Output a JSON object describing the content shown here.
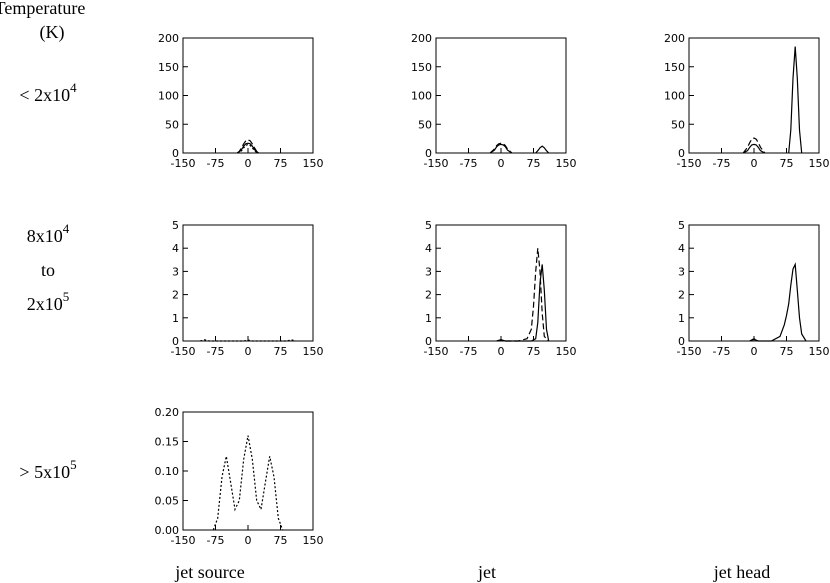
{
  "header": {
    "line1": "Temperature",
    "line2": "(K)"
  },
  "row_labels": [
    [
      {
        "text": "< 2x10",
        "sup": "4"
      }
    ],
    [
      {
        "text": "8x10",
        "sup": "4"
      },
      {
        "text": "to"
      },
      {
        "text": "2x10",
        "sup": "5"
      }
    ],
    [
      {
        "text": "> 5x10",
        "sup": "5"
      }
    ]
  ],
  "column_labels": [
    "jet source",
    "jet",
    "jet head"
  ],
  "chart_data": [
    {
      "type": "line",
      "xlim": [
        -150,
        150
      ],
      "xticks": [
        -150,
        -75,
        0,
        75,
        150
      ],
      "ylim": [
        0,
        200
      ],
      "yticks": [
        0,
        50,
        100,
        150,
        200
      ],
      "series": [
        {
          "color": "#000000",
          "style": "solid",
          "x": [
            -25,
            -20,
            -15,
            -10,
            -5,
            0,
            5,
            10,
            15,
            20,
            25
          ],
          "values": [
            0,
            2,
            6,
            12,
            16,
            17,
            16,
            12,
            6,
            2,
            0
          ]
        },
        {
          "color": "#000000",
          "style": "dashed",
          "x": [
            -25,
            -20,
            -15,
            -10,
            -5,
            0,
            5,
            10,
            15,
            20,
            25
          ],
          "values": [
            0,
            3,
            9,
            16,
            21,
            23,
            21,
            16,
            9,
            3,
            0
          ]
        },
        {
          "color": "#000000",
          "style": "dotted",
          "x": [
            -25,
            -20,
            -15,
            -10,
            -5,
            0,
            5,
            10,
            15,
            20,
            25
          ],
          "values": [
            0,
            1,
            4,
            9,
            13,
            15,
            13,
            9,
            4,
            1,
            0
          ]
        }
      ]
    },
    {
      "type": "line",
      "xlim": [
        -150,
        150
      ],
      "xticks": [
        -150,
        -75,
        0,
        75,
        150
      ],
      "ylim": [
        0,
        200
      ],
      "yticks": [
        0,
        50,
        100,
        150,
        200
      ],
      "series": [
        {
          "color": "#000000",
          "style": "solid",
          "x": [
            -25,
            -15,
            -10,
            -5,
            0,
            5,
            10,
            15,
            25,
            50,
            80,
            85,
            90,
            95,
            100,
            105,
            110
          ],
          "values": [
            0,
            5,
            11,
            14,
            15,
            14,
            11,
            5,
            0,
            null,
            0,
            4,
            9,
            12,
            9,
            4,
            0
          ]
        },
        {
          "color": "#000000",
          "style": "dashed",
          "x": [
            -25,
            -15,
            -10,
            -5,
            0,
            5,
            10,
            15,
            25
          ],
          "values": [
            0,
            7,
            13,
            16,
            17,
            16,
            13,
            7,
            0
          ]
        }
      ]
    },
    {
      "type": "line",
      "xlim": [
        -150,
        150
      ],
      "xticks": [
        -150,
        -75,
        0,
        75,
        150
      ],
      "ylim": [
        0,
        200
      ],
      "yticks": [
        0,
        50,
        100,
        150,
        200
      ],
      "series": [
        {
          "color": "#000000",
          "style": "solid",
          "x": [
            -25,
            -15,
            -10,
            -5,
            0,
            5,
            10,
            15,
            25,
            50,
            80,
            85,
            90,
            95,
            100,
            105,
            110
          ],
          "values": [
            0,
            4,
            10,
            14,
            15,
            14,
            10,
            4,
            0,
            null,
            0,
            40,
            130,
            185,
            130,
            40,
            0
          ]
        },
        {
          "color": "#000000",
          "style": "dashed",
          "x": [
            -25,
            -15,
            -10,
            -5,
            0,
            5,
            10,
            15,
            25
          ],
          "values": [
            0,
            10,
            18,
            24,
            26,
            24,
            18,
            10,
            0
          ]
        }
      ]
    },
    {
      "type": "line",
      "xlim": [
        -150,
        150
      ],
      "xticks": [
        -150,
        -75,
        0,
        75,
        150
      ],
      "ylim": [
        0,
        5
      ],
      "yticks": [
        0,
        1,
        2,
        3,
        4,
        5
      ],
      "series": [
        {
          "color": "#000000",
          "style": "dotted",
          "x": [
            -110,
            -100,
            -90,
            -10,
            0,
            10,
            90,
            100,
            110
          ],
          "values": [
            0,
            0.05,
            0,
            0,
            0.04,
            0,
            0,
            0.05,
            0
          ]
        }
      ]
    },
    {
      "type": "line",
      "xlim": [
        -150,
        150
      ],
      "xticks": [
        -150,
        -75,
        0,
        75,
        150
      ],
      "ylim": [
        0,
        5
      ],
      "yticks": [
        0,
        1,
        2,
        3,
        4,
        5
      ],
      "series": [
        {
          "color": "#000000",
          "style": "dashed",
          "x": [
            -10,
            0,
            10,
            40,
            60,
            70,
            75,
            80,
            85,
            90,
            95,
            100,
            110
          ],
          "values": [
            0,
            0.05,
            0,
            0,
            0.1,
            0.5,
            1.5,
            3,
            4,
            3,
            1.2,
            0.2,
            0
          ]
        },
        {
          "color": "#000000",
          "style": "solid",
          "x": [
            -10,
            0,
            10,
            70,
            80,
            85,
            90,
            95,
            100,
            105,
            110
          ],
          "values": [
            0,
            0.05,
            0,
            0,
            0.1,
            0.8,
            2.5,
            3.3,
            2.2,
            0.5,
            0
          ]
        }
      ]
    },
    {
      "type": "line",
      "xlim": [
        -150,
        150
      ],
      "xticks": [
        -150,
        -75,
        0,
        75,
        150
      ],
      "ylim": [
        0,
        5
      ],
      "yticks": [
        0,
        1,
        2,
        3,
        4,
        5
      ],
      "series": [
        {
          "color": "#000000",
          "style": "solid",
          "x": [
            -10,
            0,
            10,
            40,
            60,
            70,
            75,
            80,
            85,
            90,
            95,
            100,
            105,
            110,
            120
          ],
          "values": [
            0,
            0.08,
            0,
            0,
            0.2,
            0.7,
            1.1,
            1.6,
            2.4,
            3.1,
            3.3,
            2.2,
            1,
            0.3,
            0
          ]
        },
        {
          "color": "#000000",
          "style": "dashed",
          "x": [
            -10,
            0,
            10
          ],
          "values": [
            0,
            0.1,
            0
          ]
        }
      ]
    },
    {
      "type": "line",
      "xlim": [
        -150,
        150
      ],
      "xticks": [
        -150,
        -75,
        0,
        75,
        150
      ],
      "ylim": [
        0,
        0.2
      ],
      "yticks": [
        {
          "value": 0,
          "label": "0.00"
        },
        {
          "value": 0.05,
          "label": "0.05"
        },
        {
          "value": 0.1,
          "label": "0.10"
        },
        {
          "value": 0.15,
          "label": "0.15"
        },
        {
          "value": 0.2,
          "label": "0.20"
        }
      ],
      "series": [
        {
          "color": "#000000",
          "style": "dotted",
          "x": [
            -80,
            -70,
            -60,
            -50,
            -40,
            -30,
            -20,
            -10,
            0,
            10,
            20,
            30,
            40,
            50,
            60,
            70,
            80
          ],
          "values": [
            0,
            0.02,
            0.09,
            0.125,
            0.08,
            0.035,
            0.05,
            0.12,
            0.16,
            0.12,
            0.05,
            0.035,
            0.08,
            0.125,
            0.09,
            0.02,
            0
          ]
        }
      ]
    }
  ]
}
